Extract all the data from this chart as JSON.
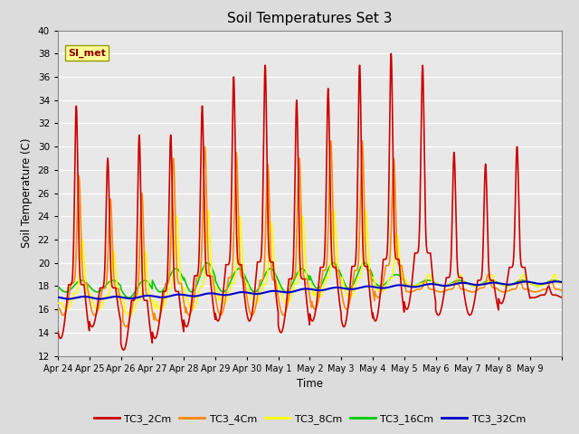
{
  "title": "Soil Temperatures Set 3",
  "xlabel": "Time",
  "ylabel": "Soil Temperature (C)",
  "ylim": [
    12,
    40
  ],
  "yticks": [
    12,
    14,
    16,
    18,
    20,
    22,
    24,
    26,
    28,
    30,
    32,
    34,
    36,
    38,
    40
  ],
  "annotation": "SI_met",
  "series": {
    "TC3_2Cm": {
      "color": "#CC0000",
      "lw": 1.2
    },
    "TC3_4Cm": {
      "color": "#FF8800",
      "lw": 1.2
    },
    "TC3_8Cm": {
      "color": "#FFFF00",
      "lw": 1.2
    },
    "TC3_16Cm": {
      "color": "#00CC00",
      "lw": 1.2
    },
    "TC3_32Cm": {
      "color": "#0000CC",
      "lw": 1.5
    }
  },
  "days": [
    "Apr 24",
    "Apr 25",
    "Apr 26",
    "Apr 27",
    "Apr 28",
    "Apr 29",
    "Apr 30",
    "May 1",
    "May 2",
    "May 3",
    "May 4",
    "May 5",
    "May 6",
    "May 7",
    "May 8",
    "May 9"
  ],
  "n_days": 16,
  "peak_peaks_2cm": [
    33.5,
    29.0,
    31.0,
    31.0,
    33.5,
    36.0,
    37.0,
    34.0,
    35.0,
    37.0,
    38.0,
    37.0,
    29.5,
    28.5,
    30.0,
    18.0
  ],
  "trough_2cm": [
    13.5,
    14.5,
    12.5,
    13.5,
    14.5,
    15.0,
    15.0,
    14.0,
    15.0,
    14.5,
    15.0,
    16.0,
    15.5,
    15.5,
    16.5,
    17.0
  ],
  "peak_peaks_4cm": [
    27.5,
    25.5,
    26.0,
    29.0,
    30.0,
    29.5,
    28.5,
    29.0,
    30.5,
    30.5,
    29.0,
    18.5,
    18.5,
    19.0,
    18.5,
    18.5
  ],
  "trough_4cm": [
    15.5,
    15.5,
    14.5,
    15.0,
    15.5,
    15.5,
    15.5,
    15.5,
    16.0,
    16.0,
    17.0,
    17.5,
    17.5,
    17.5,
    17.5,
    17.5
  ],
  "peak_peaks_8cm": [
    22.0,
    21.0,
    21.0,
    24.0,
    24.5,
    24.0,
    23.5,
    24.0,
    24.5,
    24.5,
    22.5,
    19.0,
    19.0,
    19.0,
    19.0,
    19.0
  ],
  "trough_8cm": [
    16.0,
    16.0,
    15.5,
    16.0,
    16.0,
    16.5,
    16.5,
    16.5,
    17.0,
    17.0,
    17.5,
    18.0,
    18.0,
    18.0,
    18.0,
    18.0
  ],
  "peak_peaks_16cm": [
    18.5,
    18.5,
    18.5,
    19.5,
    20.0,
    19.5,
    19.5,
    19.5,
    20.0,
    20.0,
    19.0,
    18.5,
    18.5,
    18.5,
    18.5,
    18.5
  ],
  "trough_16cm": [
    17.5,
    17.5,
    17.0,
    17.5,
    17.5,
    17.5,
    17.5,
    17.5,
    17.8,
    17.8,
    18.0,
    18.0,
    18.0,
    18.0,
    18.0,
    18.0
  ],
  "base_32cm": [
    17.0,
    17.0,
    17.0,
    17.1,
    17.2,
    17.3,
    17.4,
    17.5,
    17.7,
    17.8,
    17.9,
    18.0,
    18.1,
    18.2,
    18.2,
    18.3
  ],
  "background_color": "#DCDCDC",
  "plot_bg": "#E8E8E8"
}
